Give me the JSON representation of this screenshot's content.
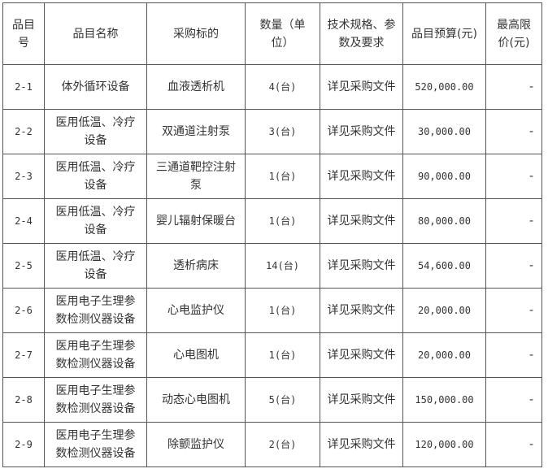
{
  "headers": [
    "品目号",
    "品目名称",
    "采购标的",
    "数量（单位）",
    "技术规格、参数及要求",
    "品目预算(元)",
    "最高限价(元)"
  ],
  "rows": [
    {
      "id": "2-1",
      "name": "体外循环设备",
      "item": "血液透析机",
      "qty": "4(台)",
      "spec": "详见采购文件",
      "budget": "520,000.00",
      "max": "-"
    },
    {
      "id": "2-2",
      "name": "医用低温、冷疗设备",
      "item": "双通道注射泵",
      "qty": "3(台)",
      "spec": "详见采购文件",
      "budget": "30,000.00",
      "max": "-"
    },
    {
      "id": "2-3",
      "name": "医用低温、冷疗设备",
      "item": "三通道靶控注射泵",
      "qty": "1(台)",
      "spec": "详见采购文件",
      "budget": "90,000.00",
      "max": "-"
    },
    {
      "id": "2-4",
      "name": "医用低温、冷疗设备",
      "item": "婴儿辐射保暖台",
      "qty": "1(台)",
      "spec": "详见采购文件",
      "budget": "80,000.00",
      "max": "-"
    },
    {
      "id": "2-5",
      "name": "医用低温、冷疗设备",
      "item": "透析病床",
      "qty": "14(台)",
      "spec": "详见采购文件",
      "budget": "54,600.00",
      "max": "-"
    },
    {
      "id": "2-6",
      "name": "医用电子生理参数检测仪器设备",
      "item": "心电监护仪",
      "qty": "1(台)",
      "spec": "详见采购文件",
      "budget": "20,000.00",
      "max": "-"
    },
    {
      "id": "2-7",
      "name": "医用电子生理参数检测仪器设备",
      "item": "心电图机",
      "qty": "1(台)",
      "spec": "详见采购文件",
      "budget": "20,000.00",
      "max": "-"
    },
    {
      "id": "2-8",
      "name": "医用电子生理参数检测仪器设备",
      "item": "动态心电图机",
      "qty": "5(台)",
      "spec": "详见采购文件",
      "budget": "150,000.00",
      "max": "-"
    },
    {
      "id": "2-9",
      "name": "医用电子生理参数检测仪器设备",
      "item": "除颤监护仪",
      "qty": "2(台)",
      "spec": "详见采购文件",
      "budget": "120,000.00",
      "max": "-"
    }
  ]
}
